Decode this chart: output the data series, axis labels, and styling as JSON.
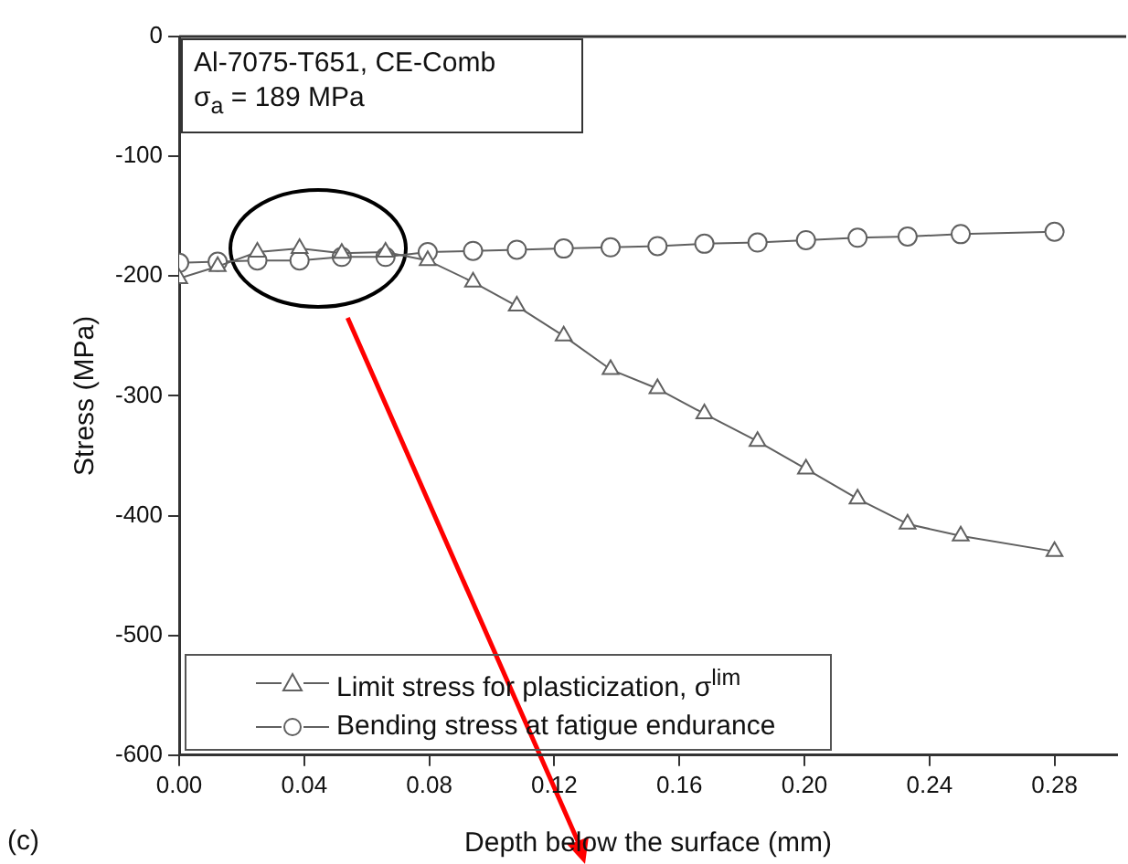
{
  "chart_data": {
    "type": "line",
    "xlabel": "Depth below the surface (mm)",
    "ylabel": "Stress (MPa)",
    "x": [
      0,
      0.0123,
      0.025,
      0.0385,
      0.052,
      0.066,
      0.0795,
      0.094,
      0.108,
      0.123,
      0.138,
      0.153,
      0.168,
      0.185,
      0.2005,
      0.217,
      0.233,
      0.25,
      0.28
    ],
    "series": [
      {
        "name": "Limit stress for plasticization, σ$^{lim}$",
        "color": "#606060",
        "marker": "triangle",
        "values": [
          -202,
          -192,
          -180,
          -177,
          -181,
          -180,
          -187,
          -205,
          -225,
          -250,
          -278,
          -294,
          -315,
          -338,
          -361,
          -386,
          -407,
          -417,
          -430
        ]
      },
      {
        "name": "Bending stress at fatigue endurance",
        "color": "#606060",
        "marker": "circle",
        "values": [
          -189,
          -188,
          -187,
          -187,
          -184,
          -184,
          -180,
          -179,
          -178,
          -177,
          -176,
          -175,
          -173,
          -172,
          -170,
          -168,
          -167,
          -165,
          -163
        ]
      }
    ],
    "xlim": [
      0,
      0.3
    ],
    "xticks": [
      {
        "value": 0,
        "label": "0.00"
      },
      0.04,
      0.08,
      0.12,
      0.16,
      {
        "value": 0.2,
        "label": "0.20"
      },
      0.24,
      0.28
    ],
    "ylim": [
      -600,
      0
    ],
    "yticks": [
      -600,
      -500,
      -400,
      -300,
      -200,
      -100,
      0
    ],
    "grid": false,
    "legend": "bottom left",
    "annotations": [
      "Al-7075-T651, CE-Comb",
      "σ$_{a}$ = 189 MPa",
      "(c)"
    ]
  }
}
